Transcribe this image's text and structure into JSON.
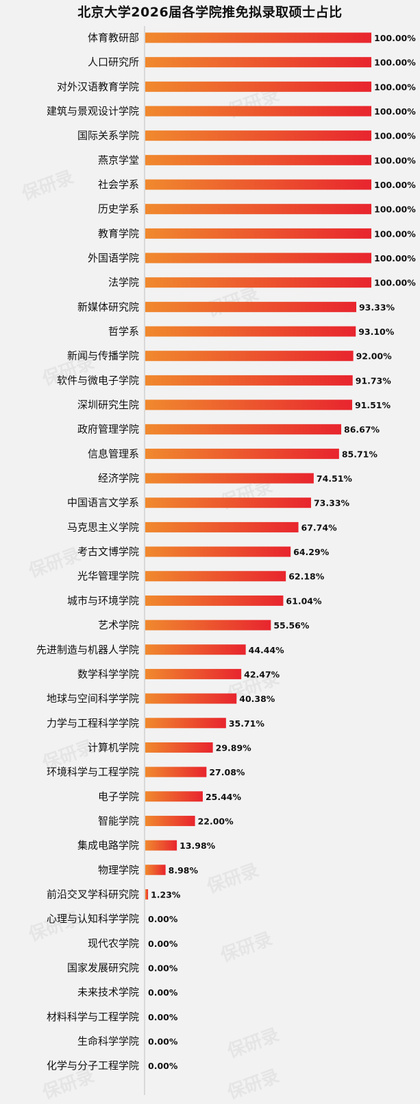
{
  "watermark": "保研录",
  "colors": {
    "bar_start": "#f0892e",
    "bar_end": "#e8252e",
    "axis": "#bfbfbf"
  },
  "chart_data": {
    "type": "bar",
    "orientation": "horizontal",
    "title": "北京大学2026届各学院推免拟录取硕士占比",
    "xlabel": "",
    "ylabel": "",
    "xlim": [
      0,
      100
    ],
    "grid": false,
    "categories": [
      "体育教研部",
      "人口研究所",
      "对外汉语教育学院",
      "建筑与景观设计学院",
      "国际关系学院",
      "燕京学堂",
      "社会学系",
      "历史学系",
      "教育学院",
      "外国语学院",
      "法学院",
      "新媒体研究院",
      "哲学系",
      "新闻与传播学院",
      "软件与微电子学院",
      "深圳研究生院",
      "政府管理学院",
      "信息管理系",
      "经济学院",
      "中国语言文学系",
      "马克思主义学院",
      "考古文博学院",
      "光华管理学院",
      "城市与环境学院",
      "艺术学院",
      "先进制造与机器人学院",
      "数学科学学院",
      "地球与空间科学学院",
      "力学与工程科学学院",
      "计算机学院",
      "环境科学与工程学院",
      "电子学院",
      "智能学院",
      "集成电路学院",
      "物理学院",
      "前沿交叉学科研究院",
      "心理与认知科学学院",
      "现代农学院",
      "国家发展研究院",
      "未来技术学院",
      "材料科学与工程学院",
      "生命科学学院",
      "化学与分子工程学院"
    ],
    "values": [
      100,
      100,
      100,
      100,
      100,
      100,
      100,
      100,
      100,
      100,
      100,
      93.33,
      93.1,
      92.0,
      91.73,
      91.51,
      86.67,
      85.71,
      74.51,
      73.33,
      67.74,
      64.29,
      62.18,
      61.04,
      55.56,
      44.44,
      42.47,
      40.38,
      35.71,
      29.89,
      27.08,
      25.44,
      22.0,
      13.98,
      8.98,
      1.23,
      0,
      0,
      0,
      0,
      0,
      0,
      0
    ],
    "value_labels": [
      "100.00%",
      "100.00%",
      "100.00%",
      "100.00%",
      "100.00%",
      "100.00%",
      "100.00%",
      "100.00%",
      "100.00%",
      "100.00%",
      "100.00%",
      "93.33%",
      "93.10%",
      "92.00%",
      "91.73%",
      "91.51%",
      "86.67%",
      "85.71%",
      "74.51%",
      "73.33%",
      "67.74%",
      "64.29%",
      "62.18%",
      "61.04%",
      "55.56%",
      "44.44%",
      "42.47%",
      "40.38%",
      "35.71%",
      "29.89%",
      "27.08%",
      "25.44%",
      "22.00%",
      "13.98%",
      "8.98%",
      "1.23%",
      "0.00%",
      "0.00%",
      "0.00%",
      "0.00%",
      "0.00%",
      "0.00%",
      "0.00%"
    ]
  }
}
